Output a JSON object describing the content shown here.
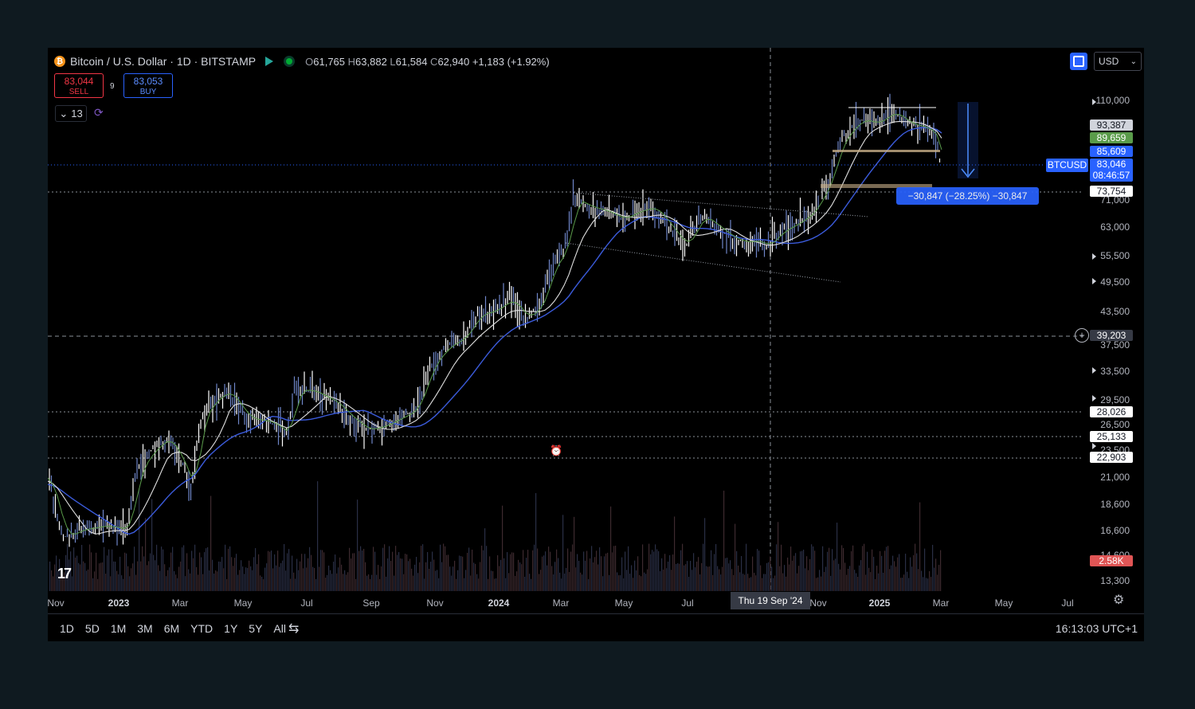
{
  "header": {
    "symbol_title": "Bitcoin / U.S. Dollar · 1D · BITSTAMP",
    "coin_icon": "bitcoin-icon",
    "ohlc": {
      "o_label": "O",
      "o": "61,765",
      "h_label": "H",
      "h": "63,882",
      "l_label": "L",
      "l": "61,584",
      "c_label": "C",
      "c": "62,940",
      "change": "+1,183 (+1.92%)"
    }
  },
  "trading": {
    "sell_price": "83,044",
    "sell_label": "SELL",
    "spread": "9",
    "buy_price": "83,053",
    "buy_label": "BUY"
  },
  "indicators": {
    "count_label": "13",
    "chevron_icon": "chevron-down-icon",
    "refresh_icon": "refresh-icon"
  },
  "toolbar": {
    "currency": "USD",
    "currency_icon": "chevron-down-icon"
  },
  "price_axis": {
    "labels": [
      "110,000",
      "71,000",
      "63,000",
      "55,500",
      "49,500",
      "43,500",
      "37,500",
      "33,500",
      "29,500",
      "26,500",
      "23,500",
      "21,000",
      "18,600",
      "16,600",
      "14,600",
      "13,300"
    ],
    "tags": {
      "t1": "93,387",
      "t2": "89,659",
      "t3": "85,609",
      "current": "83,046",
      "countdown": "08:46:57",
      "level1": "73,754",
      "crosshair": "39,203",
      "level2": "28,026",
      "level3": "25,133",
      "level4": "22,903",
      "volume": "2.58K"
    },
    "symbol_tag": "BTCUSD"
  },
  "measure": {
    "label": "−30,847 (−28.25%) −30,847"
  },
  "time_axis": {
    "labels": [
      "Nov",
      "2023",
      "Mar",
      "May",
      "Jul",
      "Sep",
      "Nov",
      "2024",
      "Mar",
      "May",
      "Jul",
      "Nov",
      "2025",
      "Mar",
      "May",
      "Jul"
    ],
    "crosshair_date": "Thu 19 Sep '24"
  },
  "bottom_bar": {
    "ranges": [
      "1D",
      "5D",
      "1M",
      "3M",
      "6M",
      "YTD",
      "1Y",
      "5Y",
      "All"
    ],
    "calendar_icon": "calendar-range-icon",
    "clock": "16:13:03 UTC+1"
  },
  "colors": {
    "background": "#000000",
    "candle_up": "#ffffff",
    "candle_down": "#6f86c9",
    "ma_fast": "#e0e0e0",
    "ma_slow": "#3b5bdb",
    "ma_short": "#5a9c4a",
    "sell": "#f23645",
    "buy": "#2962ff",
    "support_zone": "#c9b08a"
  },
  "logo": "TradingView"
}
